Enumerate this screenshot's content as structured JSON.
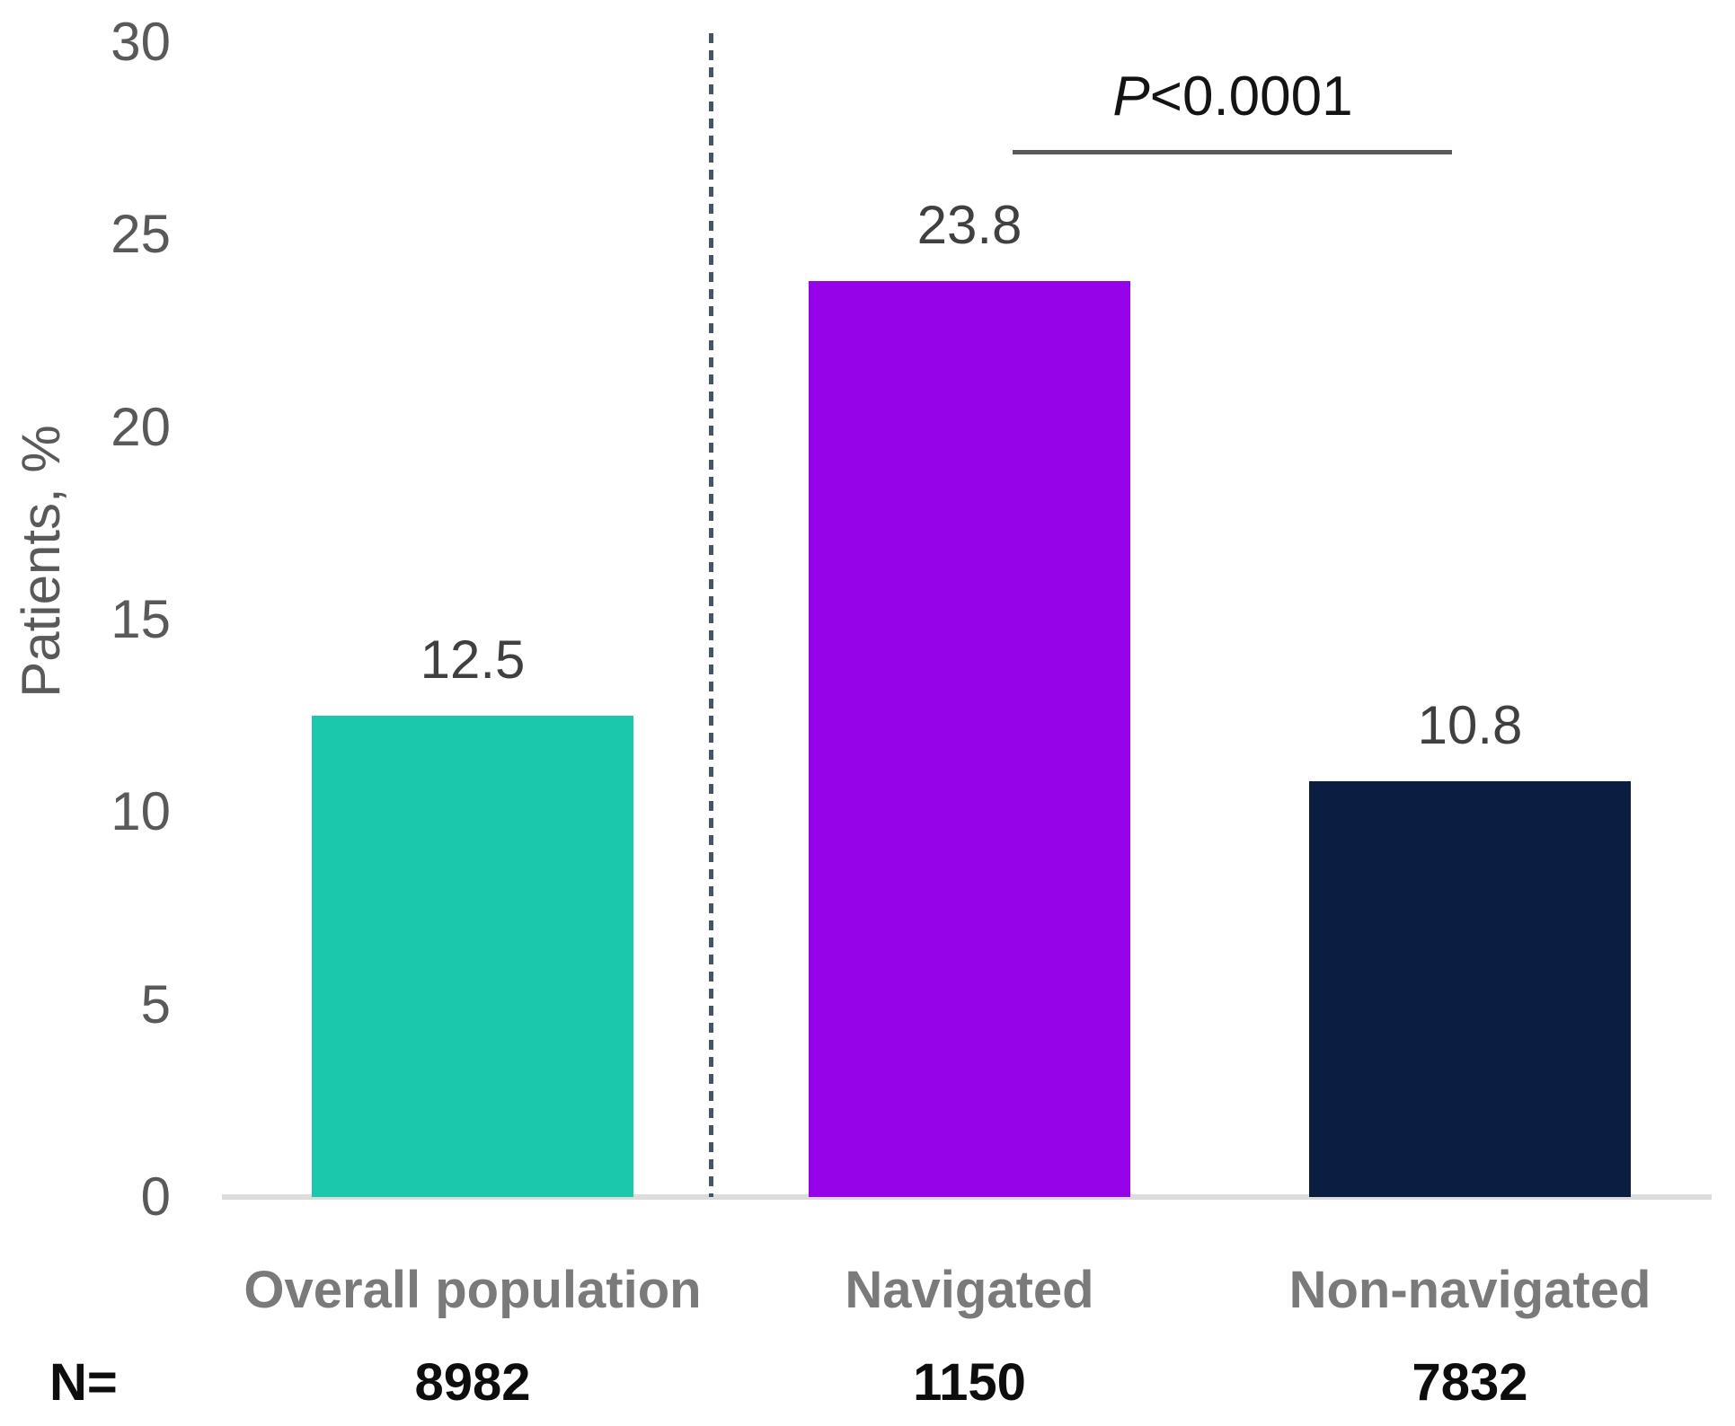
{
  "chart_data": {
    "type": "bar",
    "title": "",
    "ylabel": "Patients, %",
    "xlabel": "",
    "ylim": [
      0,
      30
    ],
    "ytick_labels": [
      30,
      25,
      20,
      15,
      10,
      5,
      0
    ],
    "categories": [
      "Overall population",
      "Navigated",
      "Non-navigated"
    ],
    "values": [
      12.5,
      23.8,
      10.8
    ],
    "value_labels": [
      "12.5",
      "23.8",
      "10.8"
    ],
    "bar_colors": [
      "#1bc8ab",
      "#9603e9",
      "#0b1e42"
    ],
    "n_label": "N=",
    "n_values": [
      "8982",
      "1150",
      "7832"
    ],
    "annotation": {
      "prefix": "P",
      "rest": "<0.0001",
      "full_text": "P<0.0001",
      "compares": [
        "Navigated",
        "Non-navigated"
      ]
    },
    "separator": {
      "after_category": "Overall population",
      "style": "dashed",
      "color": "#44546a"
    },
    "axis_line_color": "#dcdcdc",
    "grid": false,
    "legend": false
  }
}
